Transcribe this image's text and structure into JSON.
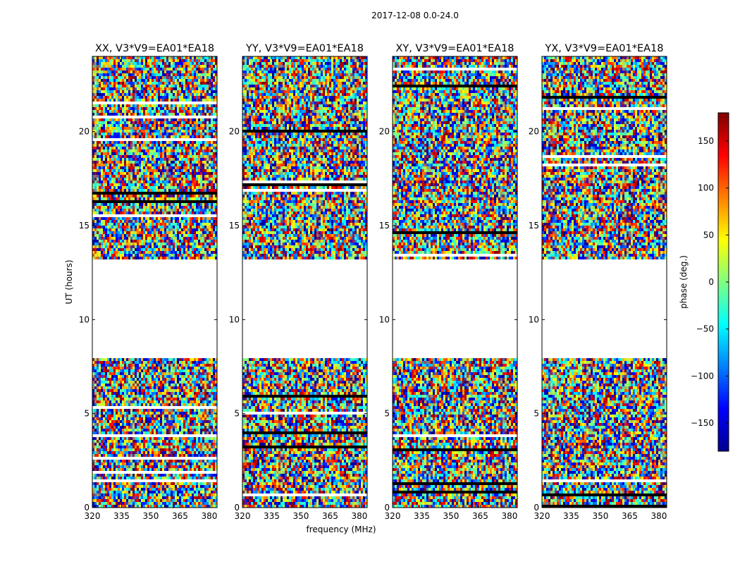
{
  "figure": {
    "suptitle": "2017-12-08 0.0-24.0",
    "xlabel": "frequency (MHz)",
    "ylabel": "UT (hours)",
    "colorbar_label": "phase (deg.)"
  },
  "chart_data": {
    "type": "heatmap",
    "colormap": "jet",
    "colorbar": {
      "label": "phase (deg.)",
      "range": [
        -180,
        180
      ],
      "ticks": [
        -150,
        -100,
        -50,
        0,
        50,
        100,
        150
      ]
    },
    "xlabel": "frequency (MHz)",
    "ylabel": "UT (hours)",
    "xlim": [
      320,
      384
    ],
    "ylim": [
      0,
      24
    ],
    "xticks": [
      320,
      335,
      350,
      365,
      380
    ],
    "yticks": [
      0,
      5,
      10,
      15,
      20
    ],
    "empty_time_ranges_hours": [
      [
        7.9,
        13.2
      ]
    ],
    "panels": [
      {
        "title": "XX, V3*V9=EA01*EA18",
        "pol": "XX"
      },
      {
        "title": "YY, V3*V9=EA01*EA18",
        "pol": "YY"
      },
      {
        "title": "XY, V3*V9=EA01*EA18",
        "pol": "XY"
      },
      {
        "title": "YX, V3*V9=EA01*EA18",
        "pol": "YX"
      }
    ]
  }
}
